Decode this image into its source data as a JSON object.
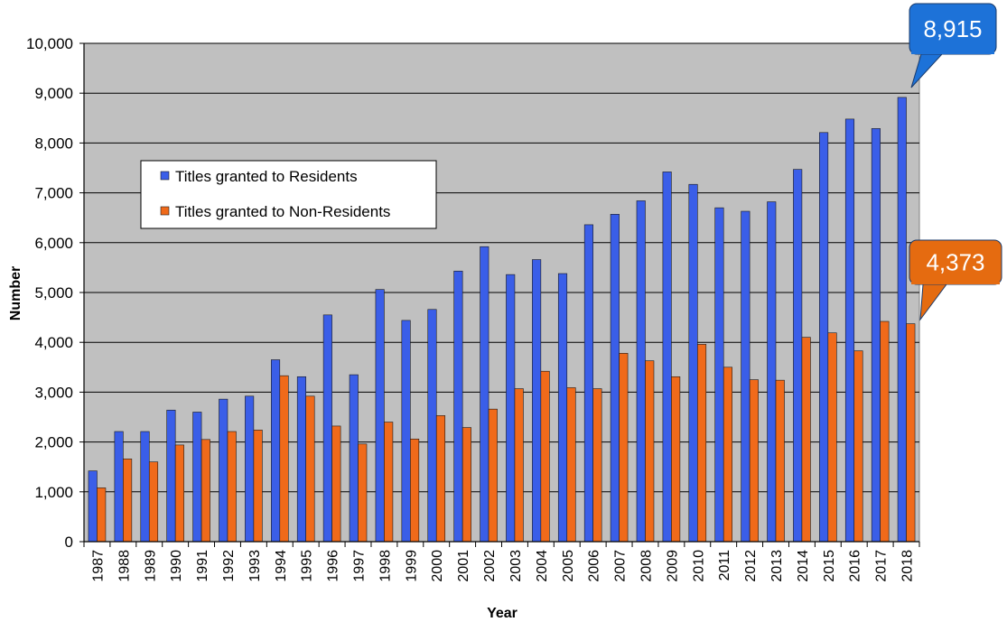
{
  "chart_data": {
    "type": "bar",
    "xlabel": "Year",
    "ylabel": "Number",
    "ylim": [
      0,
      10000
    ],
    "yticks": [
      "0",
      "1,000",
      "2,000",
      "3,000",
      "4,000",
      "5,000",
      "6,000",
      "7,000",
      "8,000",
      "9,000",
      "10,000"
    ],
    "grid": true,
    "legend_position": "upper-left",
    "categories": [
      "1987",
      "1988",
      "1989",
      "1990",
      "1991",
      "1992",
      "1993",
      "1994",
      "1995",
      "1996",
      "1997",
      "1998",
      "1999",
      "2000",
      "2001",
      "2002",
      "2003",
      "2004",
      "2005",
      "2006",
      "2007",
      "2008",
      "2009",
      "2010",
      "2011",
      "2012",
      "2013",
      "2014",
      "2015",
      "2016",
      "2017",
      "2018"
    ],
    "series": [
      {
        "name": "Titles granted to Residents",
        "color": "#3a5ee8",
        "values": [
          1420,
          2210,
          2210,
          2640,
          2600,
          2860,
          2920,
          3650,
          3310,
          4550,
          3350,
          5060,
          4440,
          4660,
          5430,
          5920,
          5360,
          5660,
          5380,
          6360,
          6570,
          6840,
          7420,
          7170,
          6700,
          6630,
          6820,
          7470,
          8210,
          8480,
          8290,
          8915
        ]
      },
      {
        "name": "Titles granted to Non-Residents",
        "color": "#f06a1a",
        "values": [
          1080,
          1660,
          1600,
          1940,
          2050,
          2210,
          2240,
          3330,
          2920,
          2320,
          1960,
          2400,
          2060,
          2530,
          2290,
          2660,
          3070,
          3420,
          3090,
          3070,
          3780,
          3630,
          3310,
          3960,
          3500,
          3250,
          3240,
          4100,
          4190,
          3830,
          4420,
          4373
        ]
      }
    ],
    "annotations": [
      {
        "text": "8,915",
        "series": 0,
        "category": "2018",
        "color": "#1d72d8"
      },
      {
        "text": "4,373",
        "series": 1,
        "category": "2018",
        "color": "#e56b10"
      }
    ],
    "plot_background": "#c0c0c0"
  }
}
